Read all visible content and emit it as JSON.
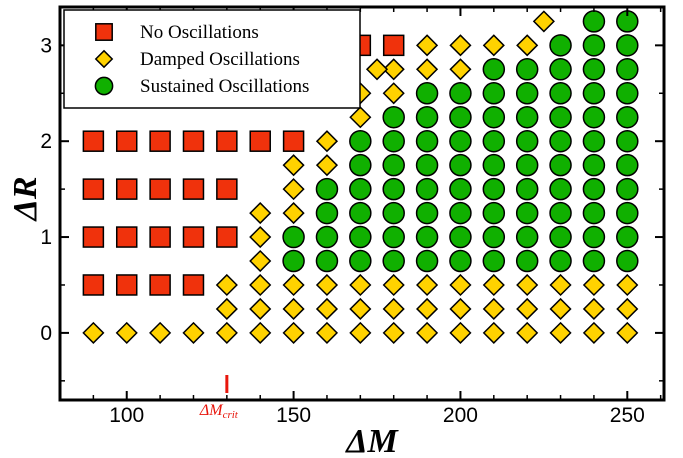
{
  "chart_data": {
    "type": "scatter",
    "xlabel": "ΔM",
    "ylabel": "ΔR",
    "xlim": [
      80,
      261
    ],
    "ylim": [
      -0.7,
      3.4
    ],
    "xticks": [
      100,
      150,
      200,
      250
    ],
    "yticks": [
      0,
      1,
      2,
      3
    ],
    "grid": false,
    "legend_position": "top-left",
    "colors": {
      "no_osc_fill": "#f0320c",
      "damped_fill": "#ffd200",
      "sustained_fill": "#10b000",
      "marker_edge": "#000000",
      "critical_marker": "#e8160c"
    },
    "critical_marker": {
      "x": 130,
      "label_main": "ΔM",
      "label_sub": "crit"
    },
    "series": [
      {
        "name": "No Oscillations",
        "marker": "square",
        "points": [
          [
            90,
            0.5
          ],
          [
            100,
            0.5
          ],
          [
            110,
            0.5
          ],
          [
            120,
            0.5
          ],
          [
            90,
            1
          ],
          [
            100,
            1
          ],
          [
            110,
            1
          ],
          [
            120,
            1
          ],
          [
            130,
            1
          ],
          [
            90,
            1.5
          ],
          [
            100,
            1.5
          ],
          [
            110,
            1.5
          ],
          [
            120,
            1.5
          ],
          [
            130,
            1.5
          ],
          [
            90,
            2
          ],
          [
            100,
            2
          ],
          [
            110,
            2
          ],
          [
            120,
            2
          ],
          [
            130,
            2
          ],
          [
            140,
            2
          ],
          [
            150,
            2
          ],
          [
            170,
            3
          ],
          [
            180,
            3
          ]
        ]
      },
      {
        "name": "Damped Oscillations",
        "marker": "diamond",
        "points": [
          [
            90,
            0
          ],
          [
            100,
            0
          ],
          [
            110,
            0
          ],
          [
            120,
            0
          ],
          [
            130,
            0
          ],
          [
            140,
            0
          ],
          [
            150,
            0
          ],
          [
            160,
            0
          ],
          [
            170,
            0
          ],
          [
            180,
            0
          ],
          [
            190,
            0
          ],
          [
            200,
            0
          ],
          [
            210,
            0
          ],
          [
            220,
            0
          ],
          [
            230,
            0
          ],
          [
            240,
            0
          ],
          [
            250,
            0
          ],
          [
            130,
            0.25
          ],
          [
            140,
            0.25
          ],
          [
            150,
            0.25
          ],
          [
            160,
            0.25
          ],
          [
            170,
            0.25
          ],
          [
            180,
            0.25
          ],
          [
            190,
            0.25
          ],
          [
            200,
            0.25
          ],
          [
            210,
            0.25
          ],
          [
            220,
            0.25
          ],
          [
            230,
            0.25
          ],
          [
            240,
            0.25
          ],
          [
            250,
            0.25
          ],
          [
            130,
            0.5
          ],
          [
            140,
            0.5
          ],
          [
            150,
            0.5
          ],
          [
            160,
            0.5
          ],
          [
            170,
            0.5
          ],
          [
            180,
            0.5
          ],
          [
            190,
            0.5
          ],
          [
            200,
            0.5
          ],
          [
            210,
            0.5
          ],
          [
            220,
            0.5
          ],
          [
            230,
            0.5
          ],
          [
            240,
            0.5
          ],
          [
            250,
            0.5
          ],
          [
            140,
            0.75
          ],
          [
            140,
            1
          ],
          [
            140,
            1.25
          ],
          [
            150,
            1.25
          ],
          [
            150,
            1.5
          ],
          [
            150,
            1.75
          ],
          [
            160,
            1.75
          ],
          [
            160,
            2
          ],
          [
            170,
            2.25
          ],
          [
            170,
            2.5
          ],
          [
            180,
            2.5
          ],
          [
            180,
            2.75
          ],
          [
            175,
            2.75
          ],
          [
            190,
            2.75
          ],
          [
            190,
            3
          ],
          [
            200,
            2.75
          ],
          [
            200,
            3
          ],
          [
            210,
            3
          ],
          [
            220,
            3
          ],
          [
            225,
            3.25
          ]
        ]
      },
      {
        "name": "Sustained Oscillations",
        "marker": "circle",
        "points": [
          [
            150,
            0.75
          ],
          [
            150,
            1
          ],
          [
            160,
            0.75
          ],
          [
            160,
            1
          ],
          [
            160,
            1.25
          ],
          [
            160,
            1.5
          ],
          [
            170,
            0.75
          ],
          [
            170,
            1
          ],
          [
            170,
            1.25
          ],
          [
            170,
            1.5
          ],
          [
            170,
            1.75
          ],
          [
            170,
            2
          ],
          [
            180,
            0.75
          ],
          [
            180,
            1
          ],
          [
            180,
            1.25
          ],
          [
            180,
            1.5
          ],
          [
            180,
            1.75
          ],
          [
            180,
            2
          ],
          [
            180,
            2.25
          ],
          [
            190,
            0.75
          ],
          [
            190,
            1
          ],
          [
            190,
            1.25
          ],
          [
            190,
            1.5
          ],
          [
            190,
            1.75
          ],
          [
            190,
            2
          ],
          [
            190,
            2.25
          ],
          [
            190,
            2.5
          ],
          [
            200,
            0.75
          ],
          [
            200,
            1
          ],
          [
            200,
            1.25
          ],
          [
            200,
            1.5
          ],
          [
            200,
            1.75
          ],
          [
            200,
            2
          ],
          [
            200,
            2.25
          ],
          [
            200,
            2.5
          ],
          [
            210,
            0.75
          ],
          [
            210,
            1
          ],
          [
            210,
            1.25
          ],
          [
            210,
            1.5
          ],
          [
            210,
            1.75
          ],
          [
            210,
            2
          ],
          [
            210,
            2.25
          ],
          [
            210,
            2.5
          ],
          [
            210,
            2.75
          ],
          [
            220,
            0.75
          ],
          [
            220,
            1
          ],
          [
            220,
            1.25
          ],
          [
            220,
            1.5
          ],
          [
            220,
            1.75
          ],
          [
            220,
            2
          ],
          [
            220,
            2.25
          ],
          [
            220,
            2.5
          ],
          [
            220,
            2.75
          ],
          [
            230,
            0.75
          ],
          [
            230,
            1
          ],
          [
            230,
            1.25
          ],
          [
            230,
            1.5
          ],
          [
            230,
            1.75
          ],
          [
            230,
            2
          ],
          [
            230,
            2.25
          ],
          [
            230,
            2.5
          ],
          [
            230,
            2.75
          ],
          [
            230,
            3
          ],
          [
            240,
            0.75
          ],
          [
            240,
            1
          ],
          [
            240,
            1.25
          ],
          [
            240,
            1.5
          ],
          [
            240,
            1.75
          ],
          [
            240,
            2
          ],
          [
            240,
            2.25
          ],
          [
            240,
            2.5
          ],
          [
            240,
            2.75
          ],
          [
            240,
            3
          ],
          [
            240,
            3.25
          ],
          [
            250,
            0.75
          ],
          [
            250,
            1
          ],
          [
            250,
            1.25
          ],
          [
            250,
            1.5
          ],
          [
            250,
            1.75
          ],
          [
            250,
            2
          ],
          [
            250,
            2.25
          ],
          [
            250,
            2.5
          ],
          [
            250,
            2.75
          ],
          [
            250,
            3
          ],
          [
            250,
            3.25
          ]
        ]
      }
    ]
  }
}
